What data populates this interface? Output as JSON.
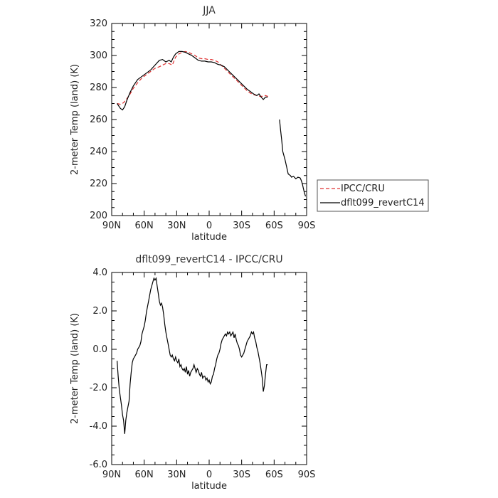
{
  "chart_data": [
    {
      "type": "line",
      "title": "JJA",
      "xlabel": "latitude",
      "ylabel": "2-meter Temp (land) (K)",
      "xlim": [
        90,
        -90
      ],
      "ylim": [
        200,
        320
      ],
      "x_tick_labels": [
        "90N",
        "60N",
        "30N",
        "0",
        "30S",
        "60S",
        "90S"
      ],
      "x_ticks": [
        90,
        60,
        30,
        0,
        -30,
        -60,
        -90
      ],
      "y_tick_labels": [
        "200",
        "220",
        "240",
        "260",
        "280",
        "300",
        "320"
      ],
      "y_ticks": [
        200,
        220,
        240,
        260,
        280,
        300,
        320
      ],
      "legend_position": "right",
      "series": [
        {
          "name": "IPCC/CRU",
          "color": "#e03030",
          "dashed": true,
          "x": [
            85,
            82,
            79,
            76,
            73,
            70,
            66,
            62,
            58,
            54,
            50,
            46,
            43,
            40,
            37,
            34,
            31,
            28,
            25,
            22,
            19,
            16,
            13,
            10,
            7,
            4,
            1,
            -2,
            -5,
            -8,
            -11,
            -14,
            -17,
            -20,
            -23,
            -26,
            -29,
            -32,
            -35,
            -38,
            -41,
            -44,
            -47,
            -50,
            -52,
            -54,
            -56
          ],
          "values": [
            270,
            269.5,
            270.5,
            273,
            276,
            279.5,
            283,
            286,
            288,
            290,
            292,
            293,
            294,
            295,
            295,
            294,
            299,
            301,
            302,
            302.5,
            302,
            301,
            300,
            298.5,
            298,
            298,
            297.5,
            297.5,
            297,
            296,
            294,
            292,
            290,
            288,
            286,
            284,
            282,
            280,
            278,
            276.5,
            275.5,
            275,
            274.5,
            274.5,
            275,
            274.5,
            274.5
          ]
        },
        {
          "name": "dflt099_revertC14",
          "color": "#000000",
          "dashed": false,
          "segments": [
            {
              "x": [
                85,
                82,
                80,
                78,
                76,
                73,
                70,
                66,
                62,
                58,
                54,
                50,
                46,
                43,
                40,
                37,
                35,
                33,
                31,
                28,
                25,
                22,
                19,
                16,
                13,
                10,
                7,
                4,
                1,
                -2,
                -5,
                -8,
                -11,
                -14,
                -17,
                -20,
                -23,
                -26,
                -29,
                -32,
                -35,
                -38,
                -41,
                -44,
                -46,
                -48,
                -50,
                -52,
                -54
              ],
              "values": [
                270,
                267,
                266,
                268,
                272,
                277,
                281,
                285,
                287,
                289,
                291,
                294,
                297,
                297.5,
                296,
                297,
                296,
                299,
                301,
                302.5,
                302.5,
                302,
                301,
                300,
                298.5,
                297,
                296.5,
                296.5,
                296,
                296,
                295.5,
                294.5,
                294,
                293,
                291,
                289,
                287,
                285,
                283,
                281,
                279,
                277.5,
                276,
                275,
                276,
                274,
                272.5,
                274,
                274
              ]
            },
            {
              "x": [
                -65,
                -66,
                -67,
                -68,
                -70,
                -71,
                -72,
                -73,
                -75,
                -76,
                -78,
                -80,
                -82,
                -84,
                -85,
                -86,
                -87,
                -88,
                -89
              ],
              "values": [
                260,
                253,
                247,
                240,
                235,
                232,
                229,
                226,
                225,
                224,
                224.5,
                223,
                224,
                223.5,
                222,
                220,
                217,
                214,
                212
              ]
            }
          ]
        }
      ]
    },
    {
      "type": "line",
      "title": "dflt099_revertC14 - IPCC/CRU",
      "xlabel": "latitude",
      "ylabel": "2-meter Temp (land) (K)",
      "xlim": [
        90,
        -90
      ],
      "ylim": [
        -6.0,
        4.0
      ],
      "x_tick_labels": [
        "90N",
        "60N",
        "30N",
        "0",
        "30S",
        "60S",
        "90S"
      ],
      "x_ticks": [
        90,
        60,
        30,
        0,
        -30,
        -60,
        -90
      ],
      "y_tick_labels": [
        "-6.0",
        "-4.0",
        "-2.0",
        "0.0",
        "2.0",
        "4.0"
      ],
      "y_ticks": [
        -6,
        -4,
        -2,
        0,
        2,
        4
      ],
      "series": [
        {
          "name": "",
          "color": "#000000",
          "dashed": false,
          "x": [
            85,
            84,
            83,
            82,
            81,
            80,
            79,
            78,
            77,
            76,
            75,
            74,
            73,
            72,
            71,
            70,
            69,
            68,
            67,
            66,
            65,
            64,
            63,
            62,
            61,
            60,
            59,
            58,
            57,
            56,
            55,
            54,
            53,
            52,
            51,
            50,
            49,
            48,
            47,
            46,
            45,
            44,
            43,
            42,
            41,
            40,
            39,
            38,
            37,
            36,
            35,
            34,
            33,
            32,
            31,
            30,
            29,
            28,
            27,
            26,
            25,
            24,
            23,
            22,
            21,
            20,
            19,
            18,
            17,
            16,
            15,
            14,
            13,
            12,
            11,
            10,
            9,
            8,
            7,
            6,
            5,
            4,
            3,
            2,
            1,
            0,
            -1,
            -2,
            -3,
            -4,
            -5,
            -6,
            -7,
            -8,
            -9,
            -10,
            -11,
            -12,
            -13,
            -14,
            -15,
            -16,
            -17,
            -18,
            -19,
            -20,
            -21,
            -22,
            -23,
            -24,
            -25,
            -26,
            -27,
            -28,
            -29,
            -30,
            -31,
            -32,
            -33,
            -34,
            -35,
            -36,
            -37,
            -38,
            -39,
            -40,
            -41,
            -42,
            -43,
            -44,
            -45,
            -46,
            -47,
            -48,
            -49,
            -50,
            -51,
            -52,
            -53,
            -54
          ],
          "values": [
            -0.6,
            -1.4,
            -2.1,
            -2.5,
            -2.9,
            -3.4,
            -3.7,
            -4.4,
            -3.7,
            -3.3,
            -3.0,
            -2.7,
            -1.8,
            -1.2,
            -0.7,
            -0.5,
            -0.4,
            -0.3,
            -0.2,
            0.0,
            0.1,
            0.2,
            0.4,
            0.8,
            1.0,
            1.2,
            1.5,
            1.9,
            2.2,
            2.5,
            2.8,
            3.1,
            3.3,
            3.5,
            3.7,
            3.6,
            3.7,
            3.3,
            2.9,
            2.5,
            2.3,
            2.4,
            2.2,
            1.8,
            1.3,
            0.9,
            0.6,
            0.3,
            0.0,
            -0.3,
            -0.4,
            -0.3,
            -0.5,
            -0.6,
            -0.4,
            -0.6,
            -0.7,
            -0.5,
            -0.9,
            -0.8,
            -1.0,
            -1.1,
            -1.0,
            -1.2,
            -0.9,
            -1.3,
            -1.1,
            -1.4,
            -1.2,
            -1.1,
            -1.0,
            -0.8,
            -1.0,
            -1.2,
            -1.0,
            -1.1,
            -1.3,
            -1.4,
            -1.2,
            -1.5,
            -1.4,
            -1.4,
            -1.6,
            -1.5,
            -1.7,
            -1.6,
            -1.8,
            -1.7,
            -1.4,
            -1.3,
            -1.0,
            -0.8,
            -0.5,
            -0.3,
            -0.2,
            0.0,
            0.3,
            0.5,
            0.6,
            0.7,
            0.8,
            0.7,
            0.9,
            0.8,
            0.9,
            0.7,
            0.8,
            0.9,
            0.6,
            0.8,
            0.5,
            0.3,
            0.2,
            0.0,
            -0.3,
            -0.4,
            -0.3,
            -0.2,
            0.0,
            0.2,
            0.4,
            0.5,
            0.6,
            0.7,
            0.9,
            0.8,
            0.9,
            0.6,
            0.4,
            0.1,
            -0.1,
            -0.4,
            -0.7,
            -1.1,
            -1.5,
            -2.2,
            -1.9,
            -1.3,
            -0.8,
            -0.8
          ]
        }
      ]
    }
  ]
}
